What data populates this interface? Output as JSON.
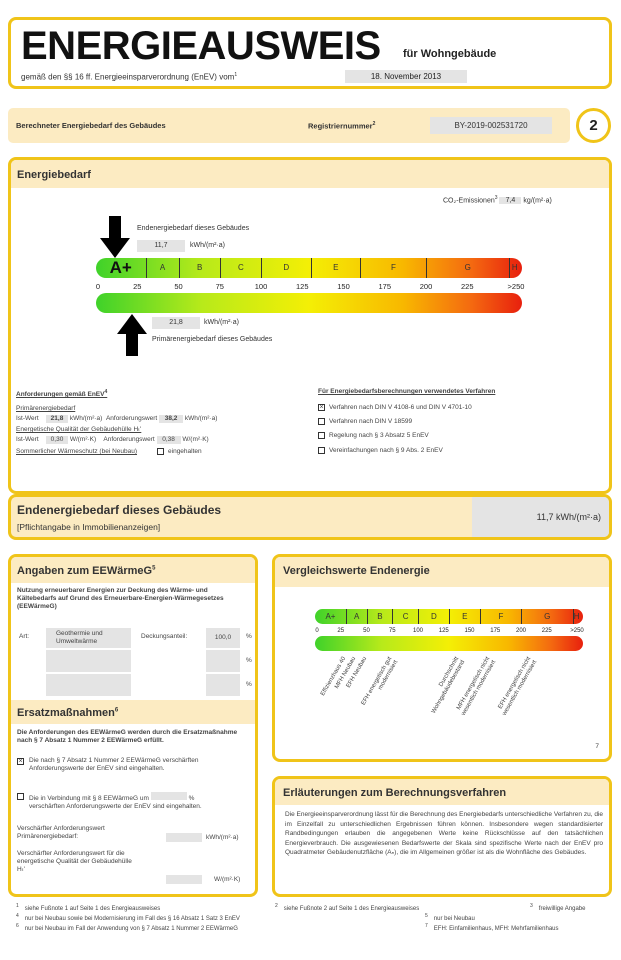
{
  "header": {
    "title": "ENERGIEAUSWEIS",
    "subtitle": "für Wohngebäude",
    "regulation": "gemäß den §§ 16 ff. Energieeinsparverordnung (EnEV) vom",
    "regulation_sup": "1",
    "date": "18. November 2013"
  },
  "strip": {
    "label": "Berechneter Energiebedarf des Gebäudes",
    "reg_label": "Registriernummer",
    "reg_sup": "2",
    "reg_value": "BY-2019-002531720",
    "page": "2"
  },
  "energiebedarf": {
    "title": "Energiebedarf",
    "co2_label": "CO₂-Emissionen",
    "co2_sup": "3",
    "co2_value": "7,4",
    "co2_unit": "kg/(m²·a)",
    "end_label": "Endenergiebedarf dieses Gebäudes",
    "end_value": "11,7",
    "end_unit": "kWh/(m²·a)",
    "end_num": 11.7,
    "prim_label": "Primärenergiebedarf dieses Gebäudes",
    "prim_value": "21,8",
    "prim_unit": "kWh/(m²·a)",
    "prim_num": 21.8,
    "classes": [
      {
        "label": "A+",
        "from": 0,
        "to": 30
      },
      {
        "label": "A",
        "from": 30,
        "to": 50
      },
      {
        "label": "B",
        "from": 50,
        "to": 75
      },
      {
        "label": "C",
        "from": 75,
        "to": 100
      },
      {
        "label": "D",
        "from": 100,
        "to": 130
      },
      {
        "label": "E",
        "from": 130,
        "to": 160
      },
      {
        "label": "F",
        "from": 160,
        "to": 200
      },
      {
        "label": "G",
        "from": 200,
        "to": 250
      },
      {
        "label": "H",
        "from": 250,
        "to": 257
      }
    ],
    "current_class": "A+",
    "ticks": [
      "0",
      "25",
      "50",
      "75",
      "100",
      "125",
      "150",
      "175",
      "200",
      "225",
      ">250"
    ],
    "req_title": "Anforderungen gemäß EnEV",
    "req_sup": "4",
    "prim_req_title": "Primärenergiebedarf",
    "ist_label": "Ist-Wert",
    "ist_prim": "21,8",
    "unit_kwh": "kWh/(m²·a)",
    "anf_label": "Anforderungswert",
    "anf_prim": "38,2",
    "ht_title": "Energetische Qualität der Gebäudehülle Hₜ'",
    "ist_ht": "0,30",
    "unit_w": "W/(m²·K)",
    "anf_ht": "0,38",
    "summer_label": "Sommerlicher Wärmeschutz (bei Neubau)",
    "summer_check": "eingehalten",
    "proc_title": "Für Energiebedarfsberechnungen verwendetes Verfahren",
    "procedures": [
      {
        "label": "Verfahren nach DIN V 4108-6 und DIN V 4701-10",
        "checked": true
      },
      {
        "label": "Verfahren nach DIN V 18599",
        "checked": false
      },
      {
        "label": "Regelung nach § 3 Absatz 5 EnEV",
        "checked": false
      },
      {
        "label": "Vereinfachungen nach § 9 Abs. 2 EnEV",
        "checked": false
      }
    ]
  },
  "endenergie": {
    "title": "Endenergiebedarf dieses Gebäudes",
    "note": "[Pflichtangabe in Immobilienanzeigen]",
    "value": "11,7 kWh/(m²·a)"
  },
  "eewaermeg": {
    "title": "Angaben zum EEWärmeG",
    "sup": "5",
    "intro": "Nutzung erneuerbarer Energien zur Deckung des Wärme- und Kältebedarfs auf Grund des Erneuerbare-Energien-Wärmegesetzes (EEWärmeG)",
    "art_label": "Art:",
    "art_value": "Geothermie und Umweltwärme",
    "deck_label": "Deckungsanteil:",
    "deck_value": "100,0",
    "pct": "%"
  },
  "ersatz": {
    "title": "Ersatzmaßnahmen",
    "sup": "6",
    "intro": "Die Anforderungen des EEWärmeG werden durch die Ersatzmaßnahme nach § 7 Absatz 1 Nummer 2 EEWärmeG erfüllt.",
    "opt1": "Die nach § 7 Absatz 1 Nummer 2 EEWärmeG verschärften Anforderungswerte der EnEV sind eingehalten.",
    "opt1_checked": true,
    "opt2": "Die in Verbindung mit § 8 EEWärmeG um",
    "opt2b": "verschärften Anforderungswerte der EnEV sind eingehalten.",
    "opt2_checked": false,
    "pct": "%",
    "v1": "Verschärfter Anforderungswert Primärenergiebedarf:",
    "v1_unit": "kWh/(m²·a)",
    "v2": "Verschärfter Anforderungswert für die energetische Qualität der Gebäudehülle Hₜ'",
    "v2_unit": "W/(m²·K)"
  },
  "vergleich": {
    "title": "Vergleichswerte Endenergie",
    "ticks": [
      "0",
      "25",
      "50",
      "75",
      "100",
      "125",
      "150",
      "175",
      "200",
      "225",
      ">250"
    ],
    "labels": [
      {
        "text": "Effizienzhaus 40",
        "value": 30
      },
      {
        "text": "MFH Neubau",
        "value": 40
      },
      {
        "text": "EFH Neubau",
        "value": 50
      },
      {
        "text": "EFH energetisch gut modernisiert",
        "value": 75
      },
      {
        "text": "Durchschnitt Wohngebäudebestand",
        "value": 140
      },
      {
        "text": "MFH energetisch nicht wesentlich modernisiert",
        "value": 170
      },
      {
        "text": "EFH energetisch nicht wesentlich modernisiert",
        "value": 210
      }
    ],
    "sup": "7"
  },
  "erlaeuterung": {
    "title": "Erläuterungen zum Berechnungsverfahren",
    "text": "Die Energieeinsparverordnung lässt für die Berechnung des Energiebedarfs unterschiedliche Verfahren zu, die im Einzelfall zu unterschiedlichen Ergebnissen führen können. Insbesondere wegen standardisierter Randbedingungen erlauben die angegebenen Werte keine Rückschlüsse auf den tatsächlichen Energieverbrauch. Die ausgewiesenen Bedarfswerte der Skala sind spezifische Werte nach der EnEV pro Quadratmeter Gebäudenutzfläche (Aₙ), die im Allgemeinen größer ist als die Wohnfläche des Gebäudes."
  },
  "footnotes": [
    {
      "n": "1",
      "t": "siehe Fußnote 1 auf Seite 1 des Energieausweises"
    },
    {
      "n": "2",
      "t": "siehe Fußnote 2 auf Seite 1 des Energieausweises"
    },
    {
      "n": "3",
      "t": "freiwillige Angabe"
    },
    {
      "n": "4",
      "t": "nur bei Neubau sowie bei Modernisierung im Fall des § 16 Absatz 1 Satz 3 EnEV"
    },
    {
      "n": "5",
      "t": "nur bei Neubau"
    },
    {
      "n": "6",
      "t": "nur bei Neubau im Fall der Anwendung von § 7 Absatz 1 Nummer 2 EEWärmeG"
    },
    {
      "n": "7",
      "t": "EFH: Einfamilienhaus, MFH: Mehrfamilienhaus"
    }
  ],
  "colors": {
    "frame": "#f0c419",
    "header_bg": "#fcebc2",
    "field": "#e4e4e4"
  }
}
